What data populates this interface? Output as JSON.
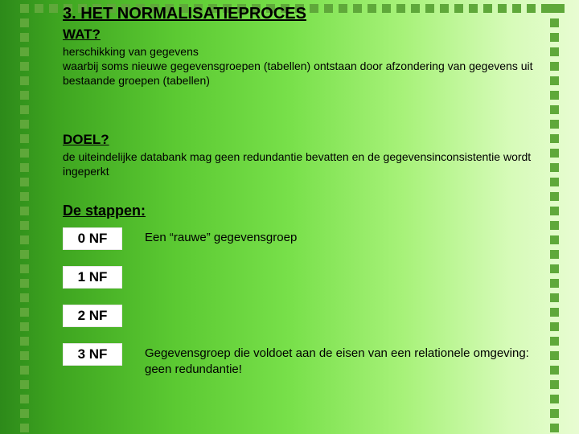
{
  "slide": {
    "background": {
      "gradient_stops": [
        "#2d8a1a",
        "#3ea520",
        "#5bc932",
        "#78e04a",
        "#a8f27a",
        "#d6fbb8",
        "#e8fcd2"
      ],
      "direction": "left-to-right"
    },
    "border": {
      "dot_color": "#5fa83a",
      "dot_size": 11,
      "dot_gap": 7,
      "sides": [
        "left",
        "top",
        "right"
      ]
    },
    "title": "3. HET NORMALISATIEPROCES",
    "sections": {
      "wat": {
        "heading": "WAT?",
        "body": "herschikking van gegevens\nwaarbij soms nieuwe gegevensgroepen (tabellen)  ontstaan door afzondering van gegevens uit bestaande groepen (tabellen)"
      },
      "doel": {
        "heading": "DOEL?",
        "body": "de uiteindelijke databank mag geen redundantie bevatten en de gegevensinconsistentie wordt ingeperkt"
      },
      "stappen": {
        "heading": "De stappen:",
        "items": [
          {
            "label": "0 NF",
            "desc": "Een “rauwe” gegevensgroep"
          },
          {
            "label": "1 NF",
            "desc": ""
          },
          {
            "label": "2 NF",
            "desc": ""
          },
          {
            "label": "3 NF",
            "desc": "Gegevensgroep die voldoet aan de eisen van een relationele omgeving: geen redundantie!"
          }
        ]
      }
    },
    "typography": {
      "font_family": "Verdana",
      "title_fontsize": 20,
      "heading_fontsize": 17,
      "body_fontsize": 14,
      "badge_fontsize": 17
    },
    "colors": {
      "text": "#000000",
      "badge_bg": "#ffffff"
    }
  }
}
